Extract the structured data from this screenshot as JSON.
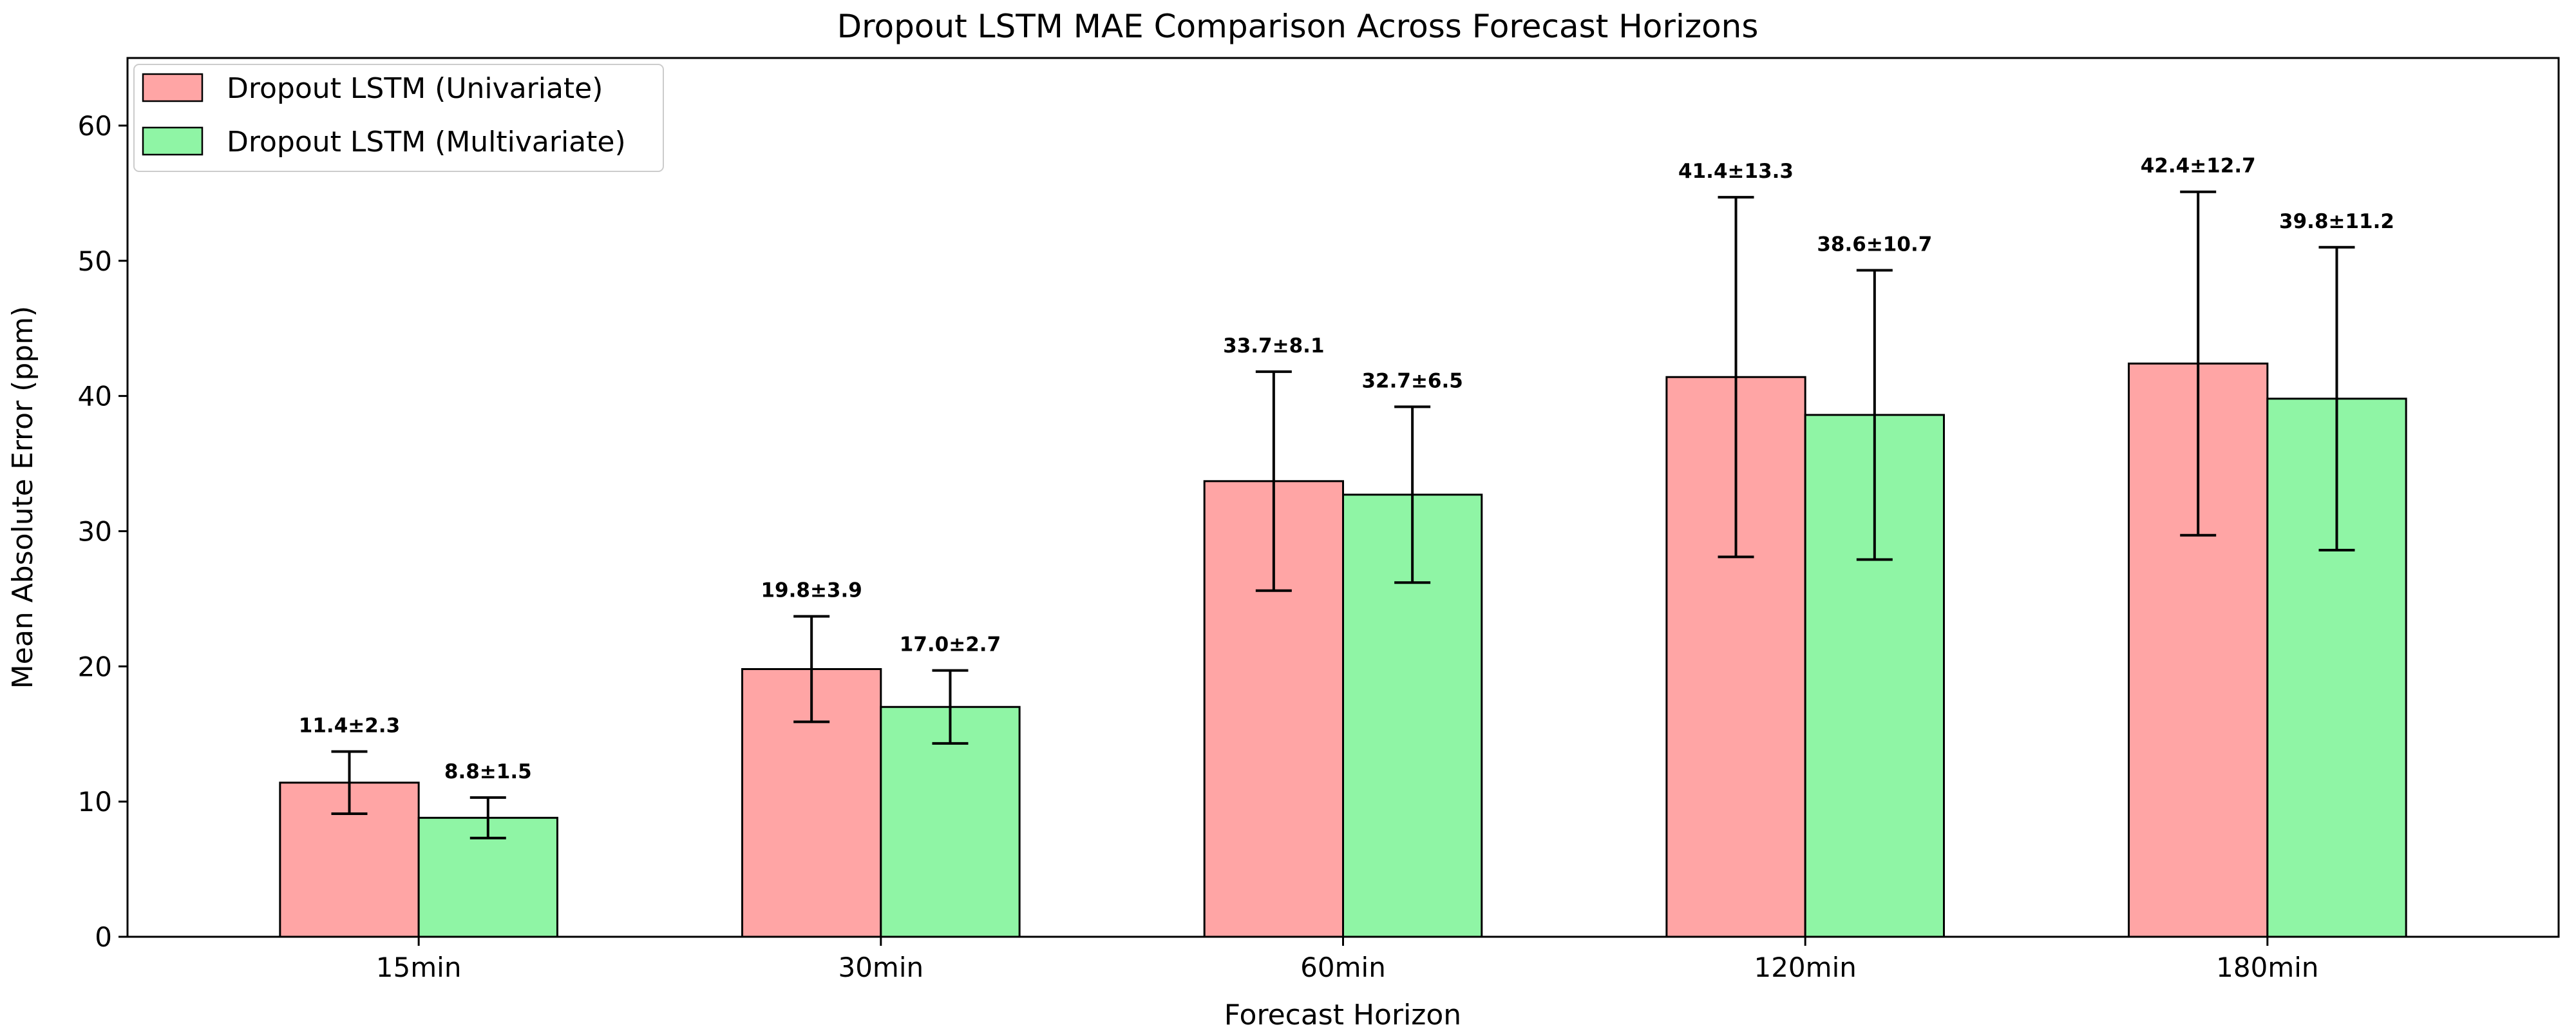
{
  "chart_data": {
    "type": "bar",
    "title": "Dropout LSTM MAE Comparison Across Forecast Horizons",
    "xlabel": "Forecast Horizon",
    "ylabel": "Mean Absolute Error (ppm)",
    "ylim": [
      0,
      65
    ],
    "yticks": [
      "0",
      "10",
      "20",
      "30",
      "40",
      "50",
      "60"
    ],
    "grid": false,
    "legend_position": "top-left",
    "categories": [
      "15min",
      "30min",
      "60min",
      "120min",
      "180min"
    ],
    "series": [
      {
        "name": "Dropout LSTM (Univariate)",
        "color": "#ffa5a5",
        "values": [
          11.4,
          19.8,
          33.7,
          41.4,
          42.4
        ],
        "errors": [
          2.3,
          3.9,
          8.1,
          13.3,
          12.7
        ],
        "labels": [
          "11.4±2.3",
          "19.8±3.9",
          "33.7±8.1",
          "41.4±13.3",
          "42.4±12.7"
        ]
      },
      {
        "name": "Dropout LSTM (Multivariate)",
        "color": "#8ff5a5",
        "values": [
          8.8,
          17.0,
          32.7,
          38.6,
          39.8
        ],
        "errors": [
          1.5,
          2.7,
          6.5,
          10.7,
          11.2
        ],
        "labels": [
          "8.8±1.5",
          "17.0±2.7",
          "32.7±6.5",
          "38.6±10.7",
          "39.8±11.2"
        ]
      }
    ]
  }
}
